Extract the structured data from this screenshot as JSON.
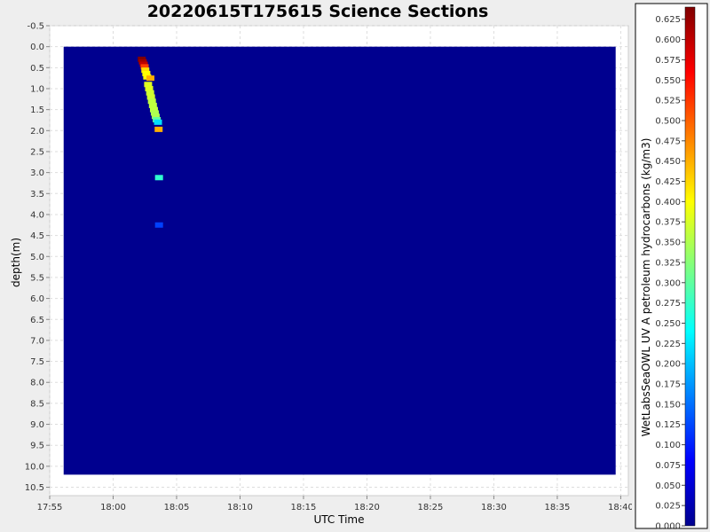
{
  "chart_data": {
    "type": "heatmap",
    "title": "20220615T175615 Science Sections",
    "xlabel": "UTC Time",
    "ylabel": "depth(m)",
    "x_ticks": [
      "17:55",
      "18:00",
      "18:05",
      "18:10",
      "18:15",
      "18:20",
      "18:25",
      "18:30",
      "18:35",
      "18:40"
    ],
    "x_range_minutes": [
      0,
      45.6
    ],
    "y_ticks": [
      "-0.5",
      "0.0",
      "0.5",
      "1.0",
      "1.5",
      "2.0",
      "2.5",
      "3.0",
      "3.5",
      "4.0",
      "4.5",
      "5.0",
      "5.5",
      "6.0",
      "6.5",
      "7.0",
      "7.5",
      "8.0",
      "8.5",
      "9.0",
      "9.5",
      "10.0",
      "10.5"
    ],
    "y_range": [
      -0.5,
      10.7
    ],
    "grid": true,
    "background_value": 0.0,
    "data_region": {
      "t_start_min": 1.1,
      "t_end_min": 44.6,
      "depth_min": 0.0,
      "depth_max": 10.2
    },
    "cells": [
      {
        "t": 7.22,
        "depth": 0.3,
        "value": 0.64
      },
      {
        "t": 7.3,
        "depth": 0.36,
        "value": 0.62
      },
      {
        "t": 7.38,
        "depth": 0.42,
        "value": 0.6
      },
      {
        "t": 7.45,
        "depth": 0.48,
        "value": 0.52
      },
      {
        "t": 7.5,
        "depth": 0.56,
        "value": 0.42
      },
      {
        "t": 7.58,
        "depth": 0.64,
        "value": 0.4
      },
      {
        "t": 7.65,
        "depth": 0.72,
        "value": 0.4
      },
      {
        "t": 7.9,
        "depth": 0.75,
        "value": 0.45
      },
      {
        "t": 7.72,
        "depth": 0.9,
        "value": 0.38
      },
      {
        "t": 7.8,
        "depth": 1.0,
        "value": 0.38
      },
      {
        "t": 7.88,
        "depth": 1.1,
        "value": 0.37
      },
      {
        "t": 7.95,
        "depth": 1.2,
        "value": 0.37
      },
      {
        "t": 8.02,
        "depth": 1.3,
        "value": 0.36
      },
      {
        "t": 8.1,
        "depth": 1.4,
        "value": 0.36
      },
      {
        "t": 8.18,
        "depth": 1.5,
        "value": 0.36
      },
      {
        "t": 8.25,
        "depth": 1.58,
        "value": 0.35
      },
      {
        "t": 8.32,
        "depth": 1.66,
        "value": 0.35
      },
      {
        "t": 8.4,
        "depth": 1.74,
        "value": 0.3
      },
      {
        "t": 8.5,
        "depth": 1.8,
        "value": 0.22
      },
      {
        "t": 8.55,
        "depth": 1.97,
        "value": 0.45
      },
      {
        "t": 8.58,
        "depth": 3.12,
        "value": 0.27
      },
      {
        "t": 8.58,
        "depth": 4.25,
        "value": 0.12
      }
    ],
    "colorbar": {
      "label": "WetLabsSeaOWL UV A petroleum hydrocarbons (kg/m3)",
      "min": 0.0,
      "max": 0.64,
      "ticks": [
        "0.000",
        "0.025",
        "0.050",
        "0.075",
        "0.100",
        "0.125",
        "0.150",
        "0.175",
        "0.200",
        "0.225",
        "0.250",
        "0.275",
        "0.300",
        "0.325",
        "0.350",
        "0.375",
        "0.400",
        "0.425",
        "0.450",
        "0.475",
        "0.500",
        "0.525",
        "0.550",
        "0.575",
        "0.600",
        "0.625"
      ],
      "colormap": "jet"
    }
  }
}
